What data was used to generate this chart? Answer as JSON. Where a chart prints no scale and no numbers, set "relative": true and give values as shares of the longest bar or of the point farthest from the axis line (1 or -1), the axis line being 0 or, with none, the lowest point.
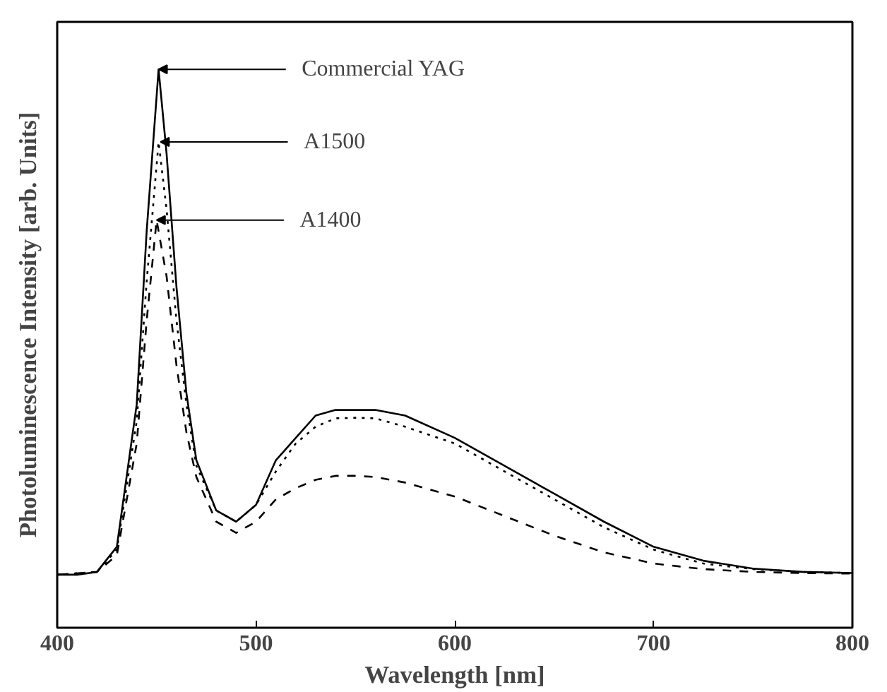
{
  "chart_data": {
    "type": "line",
    "relative": true,
    "xlabel": "Wavelength [nm]",
    "ylabel": "Photoluminescence Intensity [arb. Units]",
    "xlim": [
      400,
      800
    ],
    "xticks": [
      400,
      500,
      600,
      700,
      800
    ],
    "grid": false,
    "marker": "none",
    "series": [
      {
        "color": "#000000",
        "line_style": "solid",
        "x": [
          400,
          410,
          420,
          430,
          440,
          445,
          451,
          455,
          460,
          465,
          470,
          480,
          490,
          500,
          510,
          520,
          530,
          540,
          550,
          560,
          575,
          600,
          625,
          650,
          675,
          700,
          725,
          750,
          775,
          800
        ],
        "values": [
          0.095,
          0.095,
          0.1,
          0.145,
          0.4,
          0.71,
          1.0,
          0.85,
          0.61,
          0.42,
          0.3,
          0.21,
          0.19,
          0.22,
          0.3,
          0.34,
          0.38,
          0.39,
          0.39,
          0.39,
          0.38,
          0.34,
          0.29,
          0.24,
          0.19,
          0.145,
          0.12,
          0.106,
          0.1,
          0.098
        ]
      },
      {
        "color": "#000000",
        "line_style": "dotted",
        "x": [
          400,
          420,
          430,
          440,
          445,
          451,
          455,
          460,
          465,
          470,
          480,
          490,
          500,
          510,
          520,
          530,
          540,
          550,
          560,
          575,
          600,
          625,
          650,
          675,
          700,
          725,
          750,
          775,
          800
        ],
        "values": [
          0.095,
          0.1,
          0.14,
          0.37,
          0.62,
          0.87,
          0.75,
          0.55,
          0.4,
          0.29,
          0.21,
          0.19,
          0.22,
          0.28,
          0.33,
          0.36,
          0.375,
          0.376,
          0.375,
          0.36,
          0.33,
          0.28,
          0.23,
          0.18,
          0.14,
          0.115,
          0.105,
          0.1,
          0.098
        ]
      },
      {
        "color": "#000000",
        "line_style": "dashed",
        "x": [
          400,
          420,
          430,
          440,
          445,
          450,
          455,
          460,
          465,
          470,
          480,
          490,
          500,
          510,
          520,
          530,
          540,
          550,
          560,
          575,
          600,
          625,
          650,
          675,
          700,
          725,
          750,
          775,
          800
        ],
        "values": [
          0.095,
          0.1,
          0.13,
          0.33,
          0.55,
          0.73,
          0.63,
          0.47,
          0.35,
          0.27,
          0.19,
          0.17,
          0.19,
          0.23,
          0.25,
          0.265,
          0.272,
          0.272,
          0.27,
          0.26,
          0.235,
          0.2,
          0.165,
          0.135,
          0.115,
          0.105,
          0.1,
          0.098,
          0.097
        ]
      }
    ],
    "annotations": [
      {
        "text": "Commercial YAG",
        "x": 451,
        "y": 1.0
      },
      {
        "text": "A1500",
        "x": 452,
        "y": 0.87
      },
      {
        "text": "A1400",
        "x": 450,
        "y": 0.73
      }
    ]
  }
}
